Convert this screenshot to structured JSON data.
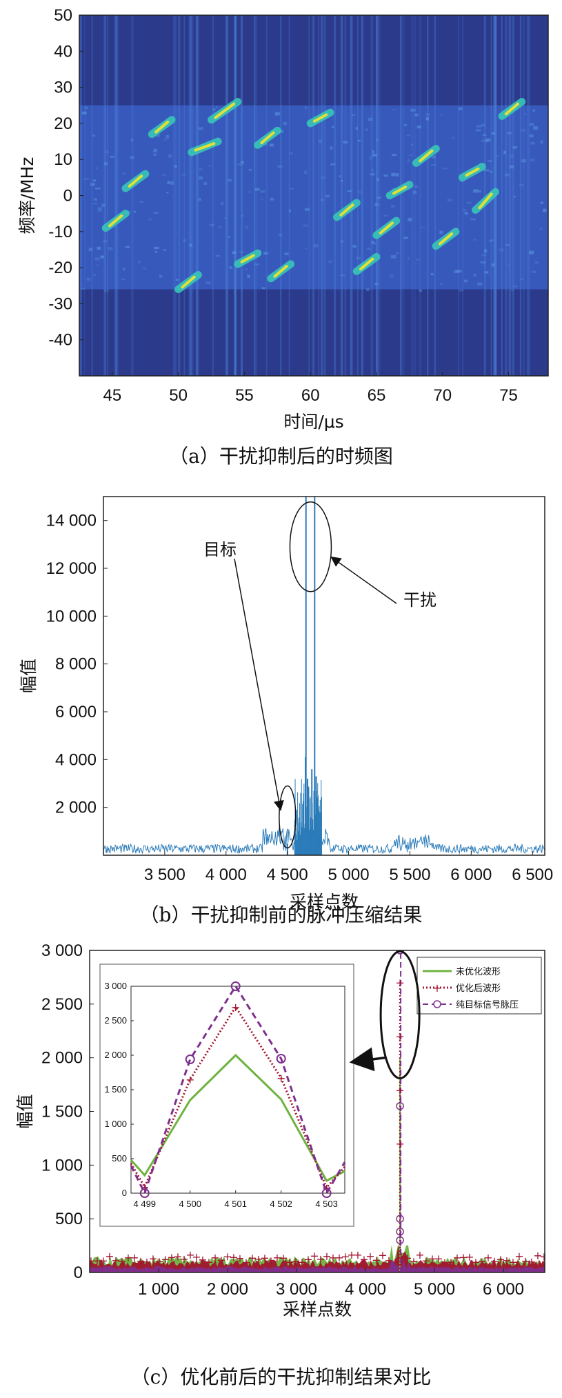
{
  "chart_data": [
    {
      "id": "a",
      "type": "heatmap",
      "caption": "（a）干扰抑制后的时频图",
      "xlabel": "时间/μs",
      "ylabel": "频率/MHz",
      "xlim": [
        42.5,
        78
      ],
      "ylim": [
        -50,
        50
      ],
      "xticks": [
        "45",
        "50",
        "55",
        "60",
        "65",
        "70",
        "75"
      ],
      "yticks": [
        "50",
        "40",
        "30",
        "20",
        "10",
        "0",
        "-10",
        "-20",
        "-30",
        "-40"
      ],
      "band_freq_range": [
        -26,
        25
      ],
      "signal_segments": [
        {
          "t": [
            44.5,
            46.0
          ],
          "f": [
            -9,
            -5
          ]
        },
        {
          "t": [
            46.0,
            47.5
          ],
          "f": [
            2,
            6
          ]
        },
        {
          "t": [
            48.0,
            49.5
          ],
          "f": [
            17,
            21
          ]
        },
        {
          "t": [
            50.0,
            51.5
          ],
          "f": [
            -26,
            -22
          ]
        },
        {
          "t": [
            51.0,
            53.0
          ],
          "f": [
            12,
            15
          ]
        },
        {
          "t": [
            52.5,
            54.5
          ],
          "f": [
            21,
            26
          ]
        },
        {
          "t": [
            54.5,
            56.0
          ],
          "f": [
            -19,
            -16
          ]
        },
        {
          "t": [
            56.0,
            57.5
          ],
          "f": [
            14,
            18
          ]
        },
        {
          "t": [
            57.0,
            58.5
          ],
          "f": [
            -23,
            -19
          ]
        },
        {
          "t": [
            60.0,
            61.5
          ],
          "f": [
            20,
            23
          ]
        },
        {
          "t": [
            62.0,
            63.5
          ],
          "f": [
            -6,
            -2
          ]
        },
        {
          "t": [
            63.5,
            65.0
          ],
          "f": [
            -21,
            -17
          ]
        },
        {
          "t": [
            65.0,
            66.5
          ],
          "f": [
            -11,
            -7
          ]
        },
        {
          "t": [
            66.0,
            67.5
          ],
          "f": [
            0,
            3
          ]
        },
        {
          "t": [
            68.0,
            69.5
          ],
          "f": [
            9,
            13
          ]
        },
        {
          "t": [
            69.5,
            71.0
          ],
          "f": [
            -14,
            -10
          ]
        },
        {
          "t": [
            71.5,
            73.0
          ],
          "f": [
            5,
            8
          ]
        },
        {
          "t": [
            72.5,
            74.0
          ],
          "f": [
            -4,
            1
          ]
        },
        {
          "t": [
            74.5,
            76.0
          ],
          "f": [
            22,
            26
          ]
        }
      ],
      "colors": {
        "background": "#2c3a8c",
        "band": "#3b5fc4",
        "signal": "#38c6b8",
        "peak": "#f5e52a"
      }
    },
    {
      "id": "b",
      "type": "line",
      "caption": "（b）干扰抑制前的脉冲压缩结果",
      "xlabel": "采样点数",
      "ylabel": "幅值",
      "xlim": [
        3000,
        6600
      ],
      "ylim": [
        0,
        15000
      ],
      "xticks": [
        3500,
        4000,
        4500,
        5000,
        5500,
        6000,
        6500
      ],
      "xtick_labels": [
        "3 500",
        "4 000",
        "4 500",
        "5 000",
        "5 500",
        "6 000",
        "6 500"
      ],
      "yticks": [
        2000,
        4000,
        6000,
        8000,
        10000,
        12000,
        14000
      ],
      "ytick_labels": [
        "2 000",
        "4 000",
        "6 000",
        "8 000",
        "10 000",
        "12 000",
        "14 000"
      ],
      "spikes": [
        {
          "x": 4501,
          "y": 500
        },
        {
          "x": 4652,
          "y": 15000
        },
        {
          "x": 4723,
          "y": 15000
        },
        {
          "x": 4648,
          "y": 4100
        },
        {
          "x": 4665,
          "y": 3200
        },
        {
          "x": 4700,
          "y": 3600
        },
        {
          "x": 4735,
          "y": 3300
        }
      ],
      "series_color": "#2b7bb9",
      "annotations": [
        {
          "text": "干扰",
          "target": [
            4690,
            12900
          ]
        },
        {
          "text": "目标",
          "target": [
            4501,
            1600
          ]
        }
      ]
    },
    {
      "id": "c",
      "type": "line",
      "caption": "（c）优化前后的干扰抑制结果对比",
      "xlabel": "采样点数",
      "ylabel": "幅值",
      "xlim": [
        0,
        6600
      ],
      "ylim": [
        0,
        3000
      ],
      "xticks": [
        1000,
        2000,
        3000,
        4000,
        5000,
        6000
      ],
      "xtick_labels": [
        "1 000",
        "2 000",
        "3 000",
        "4 000",
        "5 000",
        "6 000"
      ],
      "yticks": [
        0,
        500,
        1000,
        1500,
        2000,
        2500,
        3000
      ],
      "ytick_labels": [
        "0",
        "500",
        "1 000",
        "1 500",
        "2 000",
        "2 500",
        "3 000"
      ],
      "peak_x": 4501,
      "series": [
        {
          "name": "未优化波形",
          "color": "#6db33f",
          "style": "solid",
          "peak": 2000,
          "noise": 150
        },
        {
          "name": "优化后波形",
          "color": "#a2142f",
          "style": "dotted",
          "peak": 2700,
          "noise": 120
        },
        {
          "name": "纯目标信号脉压",
          "color": "#7e2f8e",
          "style": "dashed",
          "peak": 3000,
          "noise": 60
        }
      ],
      "inset": {
        "x": [
          4498.7,
          4499,
          4500,
          4501,
          4502,
          4503,
          4503.4
        ],
        "xlim": [
          4498.7,
          4503.4
        ],
        "ylim": [
          0,
          3000
        ],
        "xticks": [
          4499,
          4500,
          4501,
          4502,
          4503
        ],
        "xtick_labels": [
          "4 499",
          "4 500",
          "4 501",
          "4 502",
          "4 503"
        ],
        "yticks": [
          0,
          500,
          1000,
          1500,
          2000,
          2500,
          3000
        ],
        "ytick_labels": [
          "0",
          "500",
          "1 000",
          "1 500",
          "2 000",
          "2 500",
          "3 000"
        ],
        "series": [
          {
            "name": "未优化波形",
            "values": [
              480,
              260,
              1350,
              2000,
              1360,
              180,
              320
            ]
          },
          {
            "name": "优化后波形",
            "values": [
              430,
              90,
              1650,
              2700,
              1670,
              80,
              380
            ]
          },
          {
            "name": "纯目标信号脉压",
            "values": [
              400,
              0,
              1940,
              3000,
              1950,
              0,
              450
            ]
          }
        ]
      }
    }
  ]
}
